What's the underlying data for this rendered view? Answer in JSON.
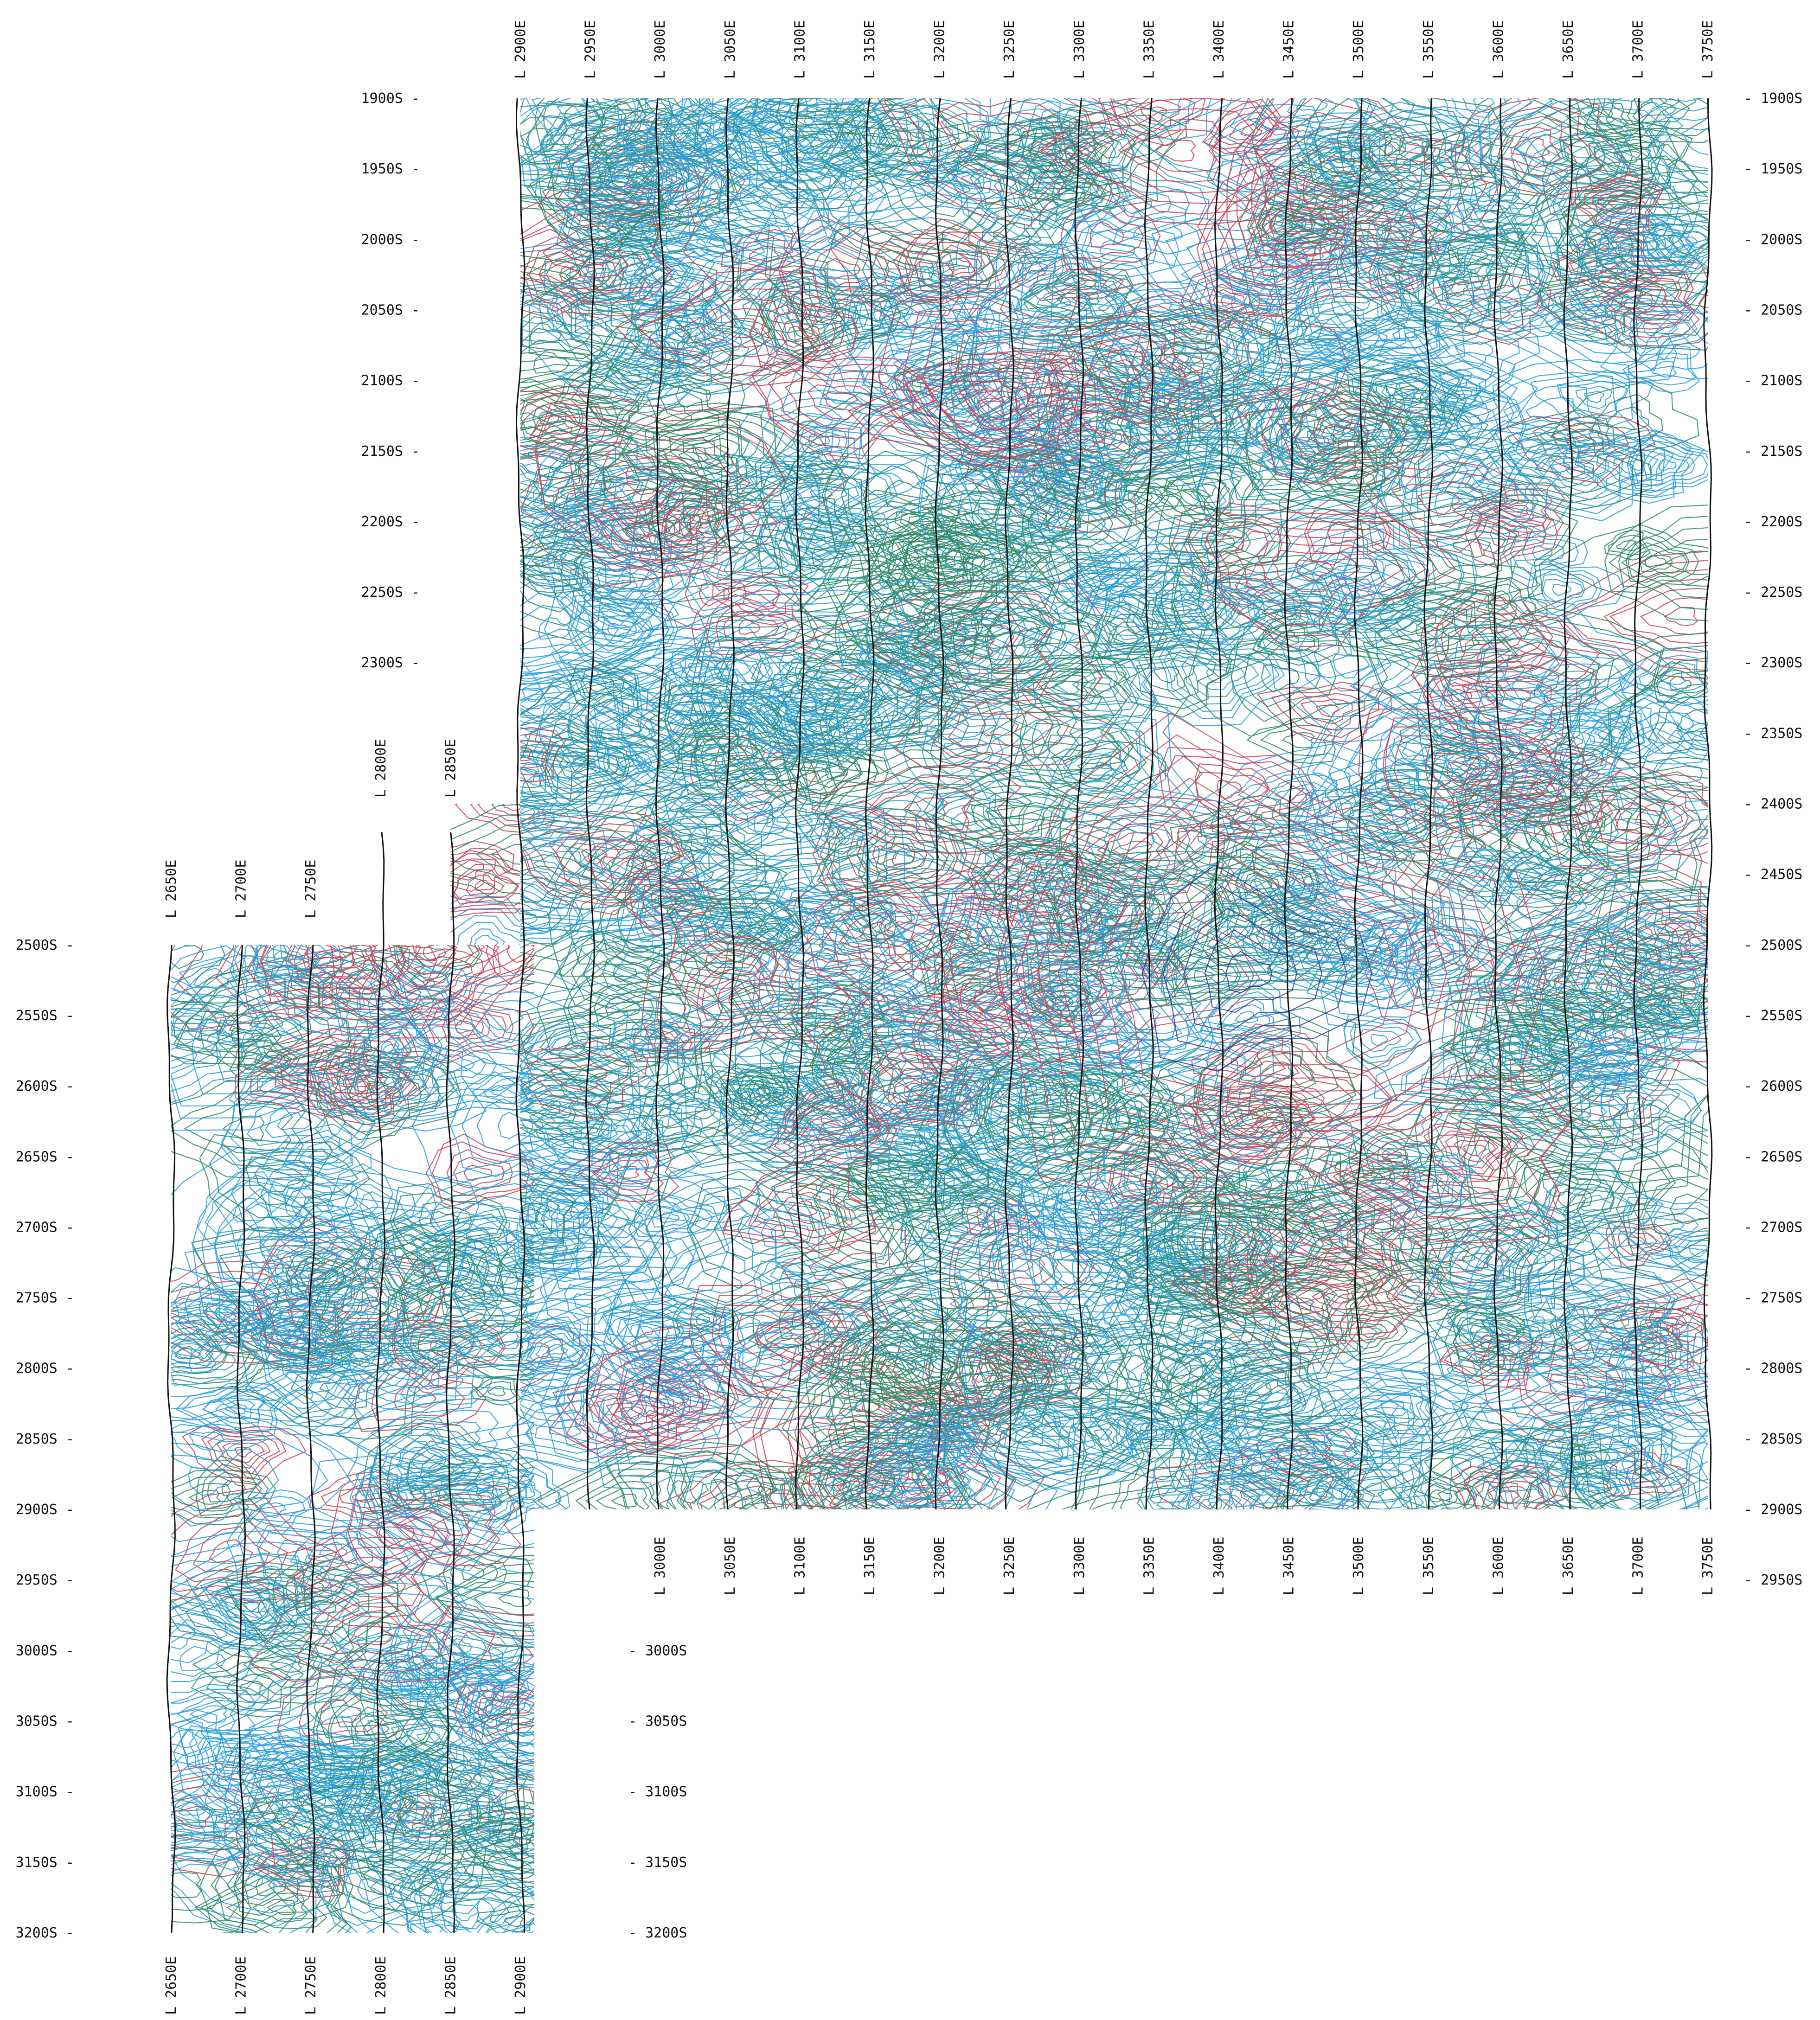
{
  "map": {
    "kind": "contoured geophysical survey grid (contour plot on survey lines)",
    "colors": {
      "background": "#ffffff",
      "contour_low": "#2a9fd8",
      "contour_mid": "#2e8b68",
      "contour_high": "#c8445c",
      "contour_peak": "#3a2a9a",
      "line_track": "#111111"
    },
    "main_block": {
      "lines_top": [
        "2900E",
        "2950E",
        "3000E",
        "3050E",
        "3100E",
        "3150E",
        "3200E",
        "3250E",
        "3300E",
        "3350E",
        "3400E",
        "3450E",
        "3500E",
        "3550E",
        "3600E",
        "3650E",
        "3700E",
        "3750E"
      ],
      "lines_bottom": [
        "3000E",
        "3050E",
        "3100E",
        "3150E",
        "3200E",
        "3250E",
        "3300E",
        "3350E",
        "3400E",
        "3450E",
        "3500E",
        "3550E",
        "3600E",
        "3650E",
        "3700E",
        "3750E"
      ],
      "stations_left": [
        "1900S",
        "1950S",
        "2000S",
        "2050S",
        "2100S",
        "2150S",
        "2200S",
        "2250S",
        "2300S"
      ],
      "stations_right": [
        "1900S",
        "1950S",
        "2000S",
        "2050S",
        "2100S",
        "2150S",
        "2200S",
        "2250S",
        "2300S",
        "2350S",
        "2400S",
        "2450S",
        "2500S",
        "2550S",
        "2600S",
        "2650S",
        "2700S",
        "2750S",
        "2800S",
        "2850S",
        "2900S",
        "2950S"
      ]
    },
    "mid_lines": [
      "2800E",
      "2850E"
    ],
    "west_block": {
      "lines_top": [
        "2650E",
        "2700E",
        "2750E"
      ],
      "lines_bottom": [
        "2650E",
        "2700E",
        "2750E",
        "2800E",
        "2850E",
        "2900E"
      ],
      "stations_left": [
        "2500S",
        "2550S",
        "2600S",
        "2650S",
        "2700S",
        "2750S",
        "2800S",
        "2850S",
        "2900S",
        "2950S",
        "3000S",
        "3050S",
        "3100S",
        "3150S",
        "3200S"
      ],
      "stations_right": [
        "3000S",
        "3050S",
        "3100S",
        "3150S",
        "3200S"
      ]
    },
    "contour_values": [
      "5",
      "10",
      "15",
      "20",
      "25",
      "30",
      "35",
      "40",
      "45",
      "50",
      "55",
      "60"
    ]
  }
}
